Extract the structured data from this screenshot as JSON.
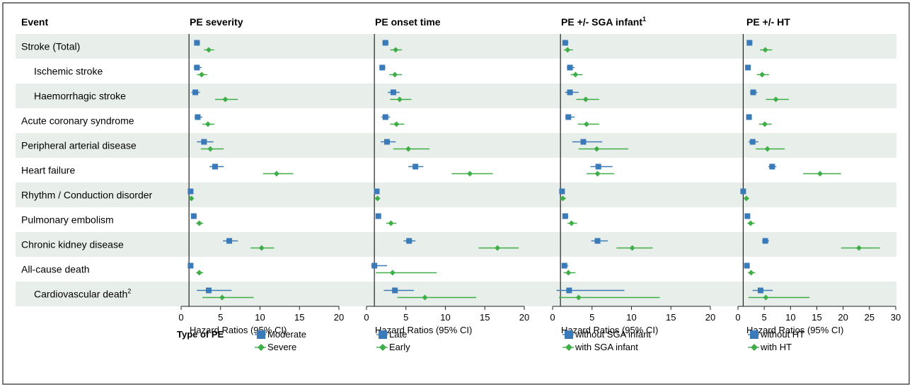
{
  "chart_data": {
    "type": "forest",
    "row_header": "Event",
    "rows": [
      {
        "label": "Stroke (Total)",
        "indent": false,
        "sup": ""
      },
      {
        "label": "Ischemic stroke",
        "indent": true,
        "sup": ""
      },
      {
        "label": "Haemorrhagic  stroke",
        "indent": true,
        "sup": ""
      },
      {
        "label": "Acute coronary syndrome",
        "indent": false,
        "sup": ""
      },
      {
        "label": "Peripheral arterial disease",
        "indent": false,
        "sup": ""
      },
      {
        "label": "Heart failure",
        "indent": false,
        "sup": ""
      },
      {
        "label": "Rhythm / Conduction disorder",
        "indent": false,
        "sup": ""
      },
      {
        "label": "Pulmonary embolism",
        "indent": false,
        "sup": ""
      },
      {
        "label": "Chronic kidney disease",
        "indent": false,
        "sup": ""
      },
      {
        "label": "All-cause death",
        "indent": false,
        "sup": ""
      },
      {
        "label": "Cardiovascular death",
        "indent": true,
        "sup": "2"
      }
    ],
    "panels": [
      {
        "title": "PE severity",
        "title_sup": "",
        "xlim": [
          0,
          20
        ],
        "ticks": [
          0,
          5,
          10,
          15,
          20
        ],
        "ref": 1,
        "xlabel": "Hazard Ratios (95% CI)",
        "legend_heading": "Type of PE",
        "series": [
          {
            "name": "Moderate",
            "marker": "square",
            "color": "#3a7ab8",
            "values": [
              [
                2.0,
                1.7,
                2.4
              ],
              [
                2.0,
                1.6,
                2.6
              ],
              [
                1.8,
                1.3,
                2.4
              ],
              [
                2.1,
                1.7,
                2.7
              ],
              [
                2.9,
                2.0,
                4.1
              ],
              [
                4.3,
                3.6,
                5.4
              ],
              [
                1.2,
                1.1,
                1.4
              ],
              [
                1.6,
                1.3,
                2.0
              ],
              [
                6.1,
                5.3,
                7.2
              ],
              [
                1.2,
                1.1,
                1.4
              ],
              [
                3.5,
                2.0,
                6.4
              ]
            ]
          },
          {
            "name": "Severe",
            "marker": "diamond",
            "color": "#3fae49",
            "values": [
              [
                3.5,
                2.9,
                4.2
              ],
              [
                2.6,
                2.0,
                3.3
              ],
              [
                5.6,
                4.3,
                7.2
              ],
              [
                3.4,
                2.7,
                4.2
              ],
              [
                3.7,
                2.5,
                5.4
              ],
              [
                12.1,
                10.4,
                14.2
              ],
              [
                1.3,
                1.1,
                1.5
              ],
              [
                2.3,
                1.9,
                2.8
              ],
              [
                10.2,
                8.8,
                11.8
              ],
              [
                2.3,
                1.9,
                2.8
              ],
              [
                5.2,
                2.7,
                9.2
              ]
            ]
          }
        ]
      },
      {
        "title": "PE onset time",
        "title_sup": "",
        "xlim": [
          0,
          20
        ],
        "ticks": [
          0,
          5,
          10,
          15,
          20
        ],
        "ref": 1,
        "xlabel": "Hazard Ratios (95% CI)",
        "legend_heading": "",
        "series": [
          {
            "name": "Late",
            "marker": "square",
            "color": "#3a7ab8",
            "values": [
              [
                2.4,
                2.0,
                2.8
              ],
              [
                2.0,
                1.6,
                2.4
              ],
              [
                3.4,
                2.7,
                4.2
              ],
              [
                2.4,
                1.9,
                3.0
              ],
              [
                2.6,
                1.8,
                3.7
              ],
              [
                6.2,
                5.3,
                7.2
              ],
              [
                1.3,
                1.1,
                1.4
              ],
              [
                1.5,
                1.2,
                1.8
              ],
              [
                5.4,
                4.7,
                6.2
              ],
              [
                1.0,
                0.6,
                2.6
              ],
              [
                3.6,
                2.2,
                6.0
              ]
            ]
          },
          {
            "name": "Early",
            "marker": "diamond",
            "color": "#3fae49",
            "values": [
              [
                3.7,
                3.0,
                4.5
              ],
              [
                3.6,
                2.9,
                4.5
              ],
              [
                4.2,
                3.0,
                5.7
              ],
              [
                3.8,
                3.0,
                4.8
              ],
              [
                5.3,
                3.4,
                8.0
              ],
              [
                13.1,
                10.8,
                16.0
              ],
              [
                1.4,
                1.1,
                1.7
              ],
              [
                3.1,
                2.5,
                3.8
              ],
              [
                16.6,
                14.2,
                19.3
              ],
              [
                3.3,
                1.2,
                8.9
              ],
              [
                7.4,
                3.9,
                13.9
              ]
            ]
          }
        ]
      },
      {
        "title": "PE +/- SGA infant",
        "title_sup": "1",
        "xlim": [
          0,
          20
        ],
        "ticks": [
          0,
          5,
          10,
          15,
          20
        ],
        "ref": 1,
        "xlabel": "Hazard Ratios (95% CI)",
        "legend_heading": "",
        "series": [
          {
            "name": "without SGA infant",
            "marker": "square",
            "color": "#3a7ab8",
            "values": [
              [
                1.6,
                1.3,
                2.0
              ],
              [
                2.2,
                1.8,
                2.8
              ],
              [
                2.2,
                1.6,
                3.3
              ],
              [
                2.0,
                1.6,
                2.8
              ],
              [
                3.9,
                2.5,
                6.3
              ],
              [
                5.8,
                4.8,
                7.6
              ],
              [
                1.2,
                1.0,
                1.3
              ],
              [
                1.6,
                1.3,
                2.0
              ],
              [
                5.7,
                4.9,
                7.0
              ],
              [
                1.5,
                1.2,
                2.0
              ],
              [
                2.1,
                0.5,
                9.1
              ]
            ]
          },
          {
            "name": "with SGA infant",
            "marker": "diamond",
            "color": "#3fae49",
            "values": [
              [
                1.9,
                1.4,
                2.6
              ],
              [
                2.9,
                2.3,
                3.8
              ],
              [
                4.2,
                3.0,
                5.9
              ],
              [
                4.3,
                3.2,
                5.9
              ],
              [
                5.6,
                3.3,
                9.6
              ],
              [
                5.7,
                4.3,
                7.8
              ],
              [
                1.3,
                1.0,
                1.7
              ],
              [
                2.4,
                1.9,
                3.1
              ],
              [
                10.1,
                8.1,
                12.7
              ],
              [
                2.0,
                1.4,
                2.9
              ],
              [
                3.3,
                0.8,
                13.6
              ]
            ]
          }
        ]
      },
      {
        "title": "PE +/- HT",
        "title_sup": "",
        "xlim": [
          0,
          30
        ],
        "ticks": [
          0,
          5,
          10,
          15,
          20,
          25,
          30
        ],
        "ref": 1,
        "xlabel": "Hazard Ratios (95% CI)",
        "legend_heading": "",
        "series": [
          {
            "name": "without HT",
            "marker": "square",
            "color": "#3a7ab8",
            "values": [
              [
                2.2,
                1.9,
                2.5
              ],
              [
                1.9,
                1.6,
                2.2
              ],
              [
                2.9,
                2.3,
                3.7
              ],
              [
                2.1,
                1.7,
                2.5
              ],
              [
                2.8,
                2.0,
                3.9
              ],
              [
                6.5,
                5.8,
                7.3
              ],
              [
                1.0,
                0.8,
                1.2
              ],
              [
                1.8,
                1.5,
                2.1
              ],
              [
                5.2,
                4.6,
                5.9
              ],
              [
                1.7,
                1.4,
                2.0
              ],
              [
                4.3,
                2.8,
                6.6
              ]
            ]
          },
          {
            "name": "with HT",
            "marker": "diamond",
            "color": "#3fae49",
            "values": [
              [
                5.2,
                4.2,
                6.5
              ],
              [
                4.6,
                3.6,
                5.9
              ],
              [
                7.2,
                5.3,
                9.7
              ],
              [
                5.1,
                4.0,
                6.4
              ],
              [
                5.6,
                3.4,
                8.9
              ],
              [
                15.6,
                12.4,
                19.6
              ],
              [
                1.6,
                1.2,
                2.1
              ],
              [
                2.4,
                1.8,
                3.2
              ],
              [
                23.0,
                19.6,
                27.0
              ],
              [
                2.5,
                1.9,
                3.3
              ],
              [
                5.3,
                2.0,
                13.6
              ]
            ]
          }
        ]
      }
    ]
  }
}
